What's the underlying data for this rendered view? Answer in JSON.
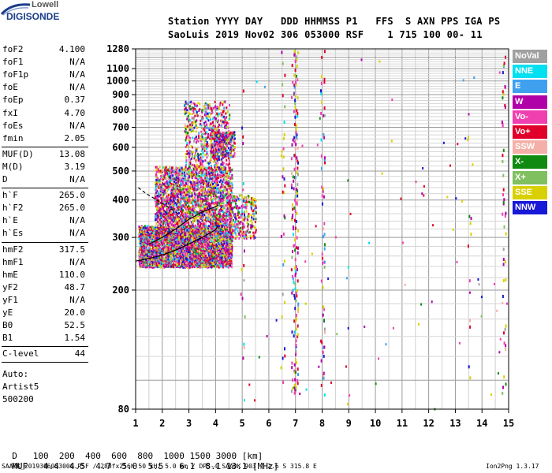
{
  "logo": {
    "line1": "Lowell",
    "line2": "DIGISONDE"
  },
  "header": {
    "line1": "Station YYYY DAY   DDD HHMMSS P1   FFS  S AXN PPS IGA PS",
    "line2": "SaoLuis 2019 Nov02 306 053000 RSF    1 715 100 00- 11"
  },
  "params_group1": [
    {
      "name": "foF2",
      "value": "4.100"
    },
    {
      "name": "foF1",
      "value": "N/A"
    },
    {
      "name": "foF1p",
      "value": "N/A"
    },
    {
      "name": "foE",
      "value": "N/A"
    },
    {
      "name": "foEp",
      "value": "0.37"
    },
    {
      "name": "fxI",
      "value": "4.70"
    },
    {
      "name": "foEs",
      "value": "N/A"
    },
    {
      "name": "fmin",
      "value": "2.05"
    }
  ],
  "params_group2": [
    {
      "name": "MUF(D)",
      "value": "13.08"
    },
    {
      "name": "M(D)",
      "value": "3.19"
    },
    {
      "name": "D",
      "value": "N/A"
    }
  ],
  "params_group3": [
    {
      "name": "h`F",
      "value": "265.0"
    },
    {
      "name": "h`F2",
      "value": "265.0"
    },
    {
      "name": "h`E",
      "value": "N/A"
    },
    {
      "name": "h`Es",
      "value": "N/A"
    }
  ],
  "params_group4": [
    {
      "name": "hmF2",
      "value": "317.5"
    },
    {
      "name": "hmF1",
      "value": "N/A"
    },
    {
      "name": "hmE",
      "value": "110.0"
    },
    {
      "name": "yF2",
      "value": "48.7"
    },
    {
      "name": "yF1",
      "value": "N/A"
    },
    {
      "name": "yE",
      "value": "20.0"
    },
    {
      "name": "B0",
      "value": "52.5"
    },
    {
      "name": "B1",
      "value": "1.54"
    }
  ],
  "params_group5": [
    {
      "name": "C-level",
      "value": "44"
    }
  ],
  "auto": {
    "line1": "Auto:",
    "line2": "Artist5",
    "line3": "500200"
  },
  "legend": [
    {
      "label": "NoVal",
      "color": "#a0a0a0"
    },
    {
      "label": "NNE",
      "color": "#00e0f0"
    },
    {
      "label": "E",
      "color": "#3fa0f0"
    },
    {
      "label": "W",
      "color": "#b000a8"
    },
    {
      "label": "Vo-",
      "color": "#f040b0"
    },
    {
      "label": "Vo+",
      "color": "#e0002a"
    },
    {
      "label": "SSW",
      "color": "#f4b0a8"
    },
    {
      "label": "X-",
      "color": "#108a10"
    },
    {
      "label": "X+",
      "color": "#80c060"
    },
    {
      "label": "SSE",
      "color": "#d8d000"
    },
    {
      "label": "NNW",
      "color": "#1818d8"
    }
  ],
  "bottom_table": {
    "d_label": "D",
    "d_values": [
      "100",
      "200",
      "400",
      "600",
      "800",
      "1000",
      "1500",
      "3000"
    ],
    "d_unit": "[km]",
    "muf_label": "MUF",
    "muf_values": [
      "4.4",
      "4.5",
      "4.7",
      "5.0",
      "5.5",
      "6.1",
      "8.1",
      "13.1"
    ],
    "muf_unit": "[MHz]"
  },
  "footer": {
    "left": "SAA0K_2019306053000.RSF / 280fx256h 50 kHz 5.0 km / DPS-4 SAA0K 903 / 2.6 S 315.8 E",
    "right": "Ion2Png 1.3.17"
  },
  "chart_data": {
    "type": "scatter",
    "title": "",
    "xlabel": "",
    "ylabel": "",
    "xlim": [
      1,
      15
    ],
    "ylim": [
      80,
      1280
    ],
    "x_ticks": [
      1,
      2,
      3,
      4,
      5,
      6,
      7,
      8,
      9,
      10,
      11,
      12,
      13,
      14,
      15
    ],
    "y_ticks": [
      80,
      200,
      300,
      400,
      500,
      600,
      700,
      800,
      900,
      1000,
      1100,
      1280
    ],
    "y_scale": "log",
    "grid": true,
    "legend_position": "right",
    "trace_series": [
      {
        "description": "F-layer virtual height trace (lower)",
        "points": [
          [
            1.0,
            250
          ],
          [
            1.5,
            255
          ],
          [
            2.0,
            262
          ],
          [
            2.5,
            272
          ],
          [
            3.0,
            285
          ],
          [
            3.5,
            300
          ],
          [
            4.0,
            318
          ],
          [
            4.1,
            330
          ]
        ]
      },
      {
        "description": "F-layer virtual height trace (upper)",
        "points": [
          [
            1.5,
            285
          ],
          [
            2.0,
            300
          ],
          [
            2.5,
            320
          ],
          [
            3.0,
            345
          ],
          [
            3.5,
            365
          ],
          [
            4.0,
            380
          ],
          [
            4.1,
            385
          ]
        ]
      },
      {
        "description": "Model profile (dashed)",
        "points": [
          [
            1.1,
            440
          ],
          [
            1.4,
            420
          ],
          [
            1.8,
            400
          ],
          [
            2.2,
            380
          ],
          [
            2.6,
            360
          ]
        ]
      }
    ],
    "echo_clusters": [
      {
        "x_range": [
          1.1,
          4.6
        ],
        "h_range": [
          240,
          330
        ],
        "density": 0.9
      },
      {
        "x_range": [
          1.7,
          4.6
        ],
        "h_range": [
          330,
          520
        ],
        "density": 0.5
      },
      {
        "x_range": [
          2.8,
          4.5
        ],
        "h_range": [
          520,
          860
        ],
        "density": 0.25
      },
      {
        "x_range": [
          3.8,
          4.7
        ],
        "h_range": [
          560,
          680
        ],
        "density": 0.5
      },
      {
        "x_range": [
          4.5,
          5.5
        ],
        "h_range": [
          300,
          420
        ],
        "density": 0.3
      }
    ],
    "echo_columns": [
      {
        "x": 5.0,
        "h_range": [
          90,
          1280
        ],
        "density": 0.05
      },
      {
        "x": 6.5,
        "h_range": [
          90,
          1280
        ],
        "density": 0.2
      },
      {
        "x": 6.9,
        "h_range": [
          90,
          1280
        ],
        "density": 0.3
      },
      {
        "x": 7.0,
        "h_range": [
          90,
          1280
        ],
        "density": 0.6
      },
      {
        "x": 8.0,
        "h_range": [
          90,
          1280
        ],
        "density": 0.35
      },
      {
        "x": 13.5,
        "h_range": [
          90,
          1280
        ],
        "density": 0.06
      },
      {
        "x": 14.8,
        "h_range": [
          90,
          1280
        ],
        "density": 0.25
      }
    ]
  }
}
